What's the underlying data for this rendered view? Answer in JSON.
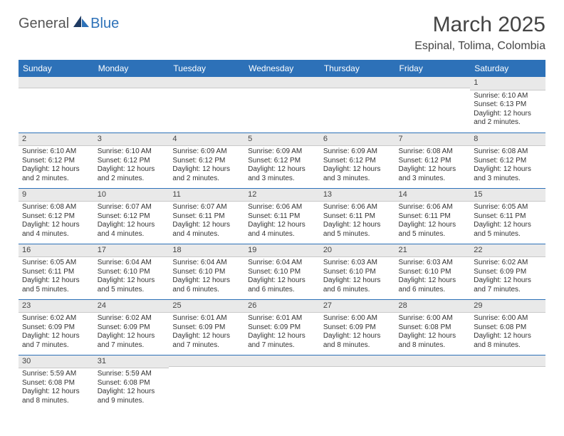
{
  "brand": {
    "part1": "General",
    "part2": "Blue"
  },
  "title": "March 2025",
  "location": "Espinal, Tolima, Colombia",
  "colors": {
    "header_bg": "#2d71b8",
    "header_text": "#ffffff",
    "daynum_bg": "#e9e9e9",
    "row_border": "#2d71b8",
    "text": "#333333"
  },
  "weekdays": [
    "Sunday",
    "Monday",
    "Tuesday",
    "Wednesday",
    "Thursday",
    "Friday",
    "Saturday"
  ],
  "weeks": [
    [
      {
        "n": "",
        "sr": "",
        "ss": "",
        "dl": ""
      },
      {
        "n": "",
        "sr": "",
        "ss": "",
        "dl": ""
      },
      {
        "n": "",
        "sr": "",
        "ss": "",
        "dl": ""
      },
      {
        "n": "",
        "sr": "",
        "ss": "",
        "dl": ""
      },
      {
        "n": "",
        "sr": "",
        "ss": "",
        "dl": ""
      },
      {
        "n": "",
        "sr": "",
        "ss": "",
        "dl": ""
      },
      {
        "n": "1",
        "sr": "Sunrise: 6:10 AM",
        "ss": "Sunset: 6:13 PM",
        "dl": "Daylight: 12 hours and 2 minutes."
      }
    ],
    [
      {
        "n": "2",
        "sr": "Sunrise: 6:10 AM",
        "ss": "Sunset: 6:12 PM",
        "dl": "Daylight: 12 hours and 2 minutes."
      },
      {
        "n": "3",
        "sr": "Sunrise: 6:10 AM",
        "ss": "Sunset: 6:12 PM",
        "dl": "Daylight: 12 hours and 2 minutes."
      },
      {
        "n": "4",
        "sr": "Sunrise: 6:09 AM",
        "ss": "Sunset: 6:12 PM",
        "dl": "Daylight: 12 hours and 2 minutes."
      },
      {
        "n": "5",
        "sr": "Sunrise: 6:09 AM",
        "ss": "Sunset: 6:12 PM",
        "dl": "Daylight: 12 hours and 3 minutes."
      },
      {
        "n": "6",
        "sr": "Sunrise: 6:09 AM",
        "ss": "Sunset: 6:12 PM",
        "dl": "Daylight: 12 hours and 3 minutes."
      },
      {
        "n": "7",
        "sr": "Sunrise: 6:08 AM",
        "ss": "Sunset: 6:12 PM",
        "dl": "Daylight: 12 hours and 3 minutes."
      },
      {
        "n": "8",
        "sr": "Sunrise: 6:08 AM",
        "ss": "Sunset: 6:12 PM",
        "dl": "Daylight: 12 hours and 3 minutes."
      }
    ],
    [
      {
        "n": "9",
        "sr": "Sunrise: 6:08 AM",
        "ss": "Sunset: 6:12 PM",
        "dl": "Daylight: 12 hours and 4 minutes."
      },
      {
        "n": "10",
        "sr": "Sunrise: 6:07 AM",
        "ss": "Sunset: 6:12 PM",
        "dl": "Daylight: 12 hours and 4 minutes."
      },
      {
        "n": "11",
        "sr": "Sunrise: 6:07 AM",
        "ss": "Sunset: 6:11 PM",
        "dl": "Daylight: 12 hours and 4 minutes."
      },
      {
        "n": "12",
        "sr": "Sunrise: 6:06 AM",
        "ss": "Sunset: 6:11 PM",
        "dl": "Daylight: 12 hours and 4 minutes."
      },
      {
        "n": "13",
        "sr": "Sunrise: 6:06 AM",
        "ss": "Sunset: 6:11 PM",
        "dl": "Daylight: 12 hours and 5 minutes."
      },
      {
        "n": "14",
        "sr": "Sunrise: 6:06 AM",
        "ss": "Sunset: 6:11 PM",
        "dl": "Daylight: 12 hours and 5 minutes."
      },
      {
        "n": "15",
        "sr": "Sunrise: 6:05 AM",
        "ss": "Sunset: 6:11 PM",
        "dl": "Daylight: 12 hours and 5 minutes."
      }
    ],
    [
      {
        "n": "16",
        "sr": "Sunrise: 6:05 AM",
        "ss": "Sunset: 6:11 PM",
        "dl": "Daylight: 12 hours and 5 minutes."
      },
      {
        "n": "17",
        "sr": "Sunrise: 6:04 AM",
        "ss": "Sunset: 6:10 PM",
        "dl": "Daylight: 12 hours and 5 minutes."
      },
      {
        "n": "18",
        "sr": "Sunrise: 6:04 AM",
        "ss": "Sunset: 6:10 PM",
        "dl": "Daylight: 12 hours and 6 minutes."
      },
      {
        "n": "19",
        "sr": "Sunrise: 6:04 AM",
        "ss": "Sunset: 6:10 PM",
        "dl": "Daylight: 12 hours and 6 minutes."
      },
      {
        "n": "20",
        "sr": "Sunrise: 6:03 AM",
        "ss": "Sunset: 6:10 PM",
        "dl": "Daylight: 12 hours and 6 minutes."
      },
      {
        "n": "21",
        "sr": "Sunrise: 6:03 AM",
        "ss": "Sunset: 6:10 PM",
        "dl": "Daylight: 12 hours and 6 minutes."
      },
      {
        "n": "22",
        "sr": "Sunrise: 6:02 AM",
        "ss": "Sunset: 6:09 PM",
        "dl": "Daylight: 12 hours and 7 minutes."
      }
    ],
    [
      {
        "n": "23",
        "sr": "Sunrise: 6:02 AM",
        "ss": "Sunset: 6:09 PM",
        "dl": "Daylight: 12 hours and 7 minutes."
      },
      {
        "n": "24",
        "sr": "Sunrise: 6:02 AM",
        "ss": "Sunset: 6:09 PM",
        "dl": "Daylight: 12 hours and 7 minutes."
      },
      {
        "n": "25",
        "sr": "Sunrise: 6:01 AM",
        "ss": "Sunset: 6:09 PM",
        "dl": "Daylight: 12 hours and 7 minutes."
      },
      {
        "n": "26",
        "sr": "Sunrise: 6:01 AM",
        "ss": "Sunset: 6:09 PM",
        "dl": "Daylight: 12 hours and 7 minutes."
      },
      {
        "n": "27",
        "sr": "Sunrise: 6:00 AM",
        "ss": "Sunset: 6:09 PM",
        "dl": "Daylight: 12 hours and 8 minutes."
      },
      {
        "n": "28",
        "sr": "Sunrise: 6:00 AM",
        "ss": "Sunset: 6:08 PM",
        "dl": "Daylight: 12 hours and 8 minutes."
      },
      {
        "n": "29",
        "sr": "Sunrise: 6:00 AM",
        "ss": "Sunset: 6:08 PM",
        "dl": "Daylight: 12 hours and 8 minutes."
      }
    ],
    [
      {
        "n": "30",
        "sr": "Sunrise: 5:59 AM",
        "ss": "Sunset: 6:08 PM",
        "dl": "Daylight: 12 hours and 8 minutes."
      },
      {
        "n": "31",
        "sr": "Sunrise: 5:59 AM",
        "ss": "Sunset: 6:08 PM",
        "dl": "Daylight: 12 hours and 9 minutes."
      },
      {
        "n": "",
        "sr": "",
        "ss": "",
        "dl": ""
      },
      {
        "n": "",
        "sr": "",
        "ss": "",
        "dl": ""
      },
      {
        "n": "",
        "sr": "",
        "ss": "",
        "dl": ""
      },
      {
        "n": "",
        "sr": "",
        "ss": "",
        "dl": ""
      },
      {
        "n": "",
        "sr": "",
        "ss": "",
        "dl": ""
      }
    ]
  ]
}
